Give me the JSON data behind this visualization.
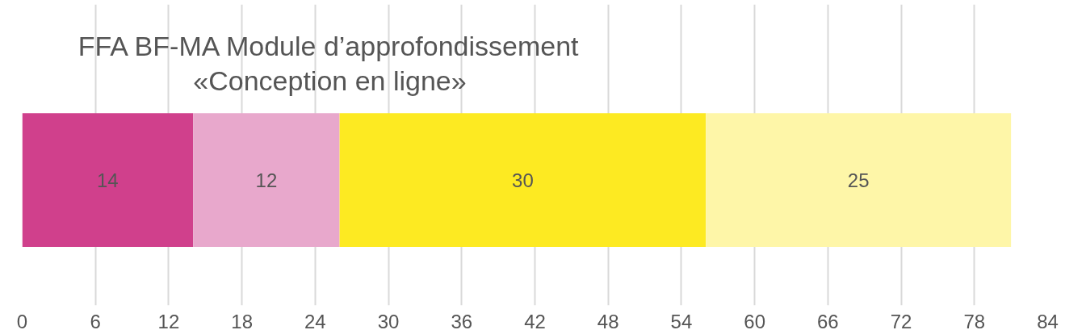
{
  "chart_data": {
    "type": "bar",
    "orientation": "horizontal",
    "stacked": true,
    "title": "FFA BF-MA Module d’approfondissement\n«Conception en ligne»",
    "categories": [
      null
    ],
    "series": [
      {
        "color": "#d0408c",
        "values": [
          14
        ]
      },
      {
        "color": "#e8a8cc",
        "values": [
          12
        ]
      },
      {
        "color": "#fdea22",
        "values": [
          30
        ]
      },
      {
        "color": "#fef6a8",
        "values": [
          25
        ]
      }
    ],
    "xlim": [
      0,
      84
    ],
    "xticks": [
      0,
      6,
      12,
      18,
      24,
      30,
      36,
      42,
      48,
      54,
      60,
      66,
      72,
      78,
      84
    ],
    "grid": "x",
    "data_labels": true,
    "tick_labels": "x"
  }
}
